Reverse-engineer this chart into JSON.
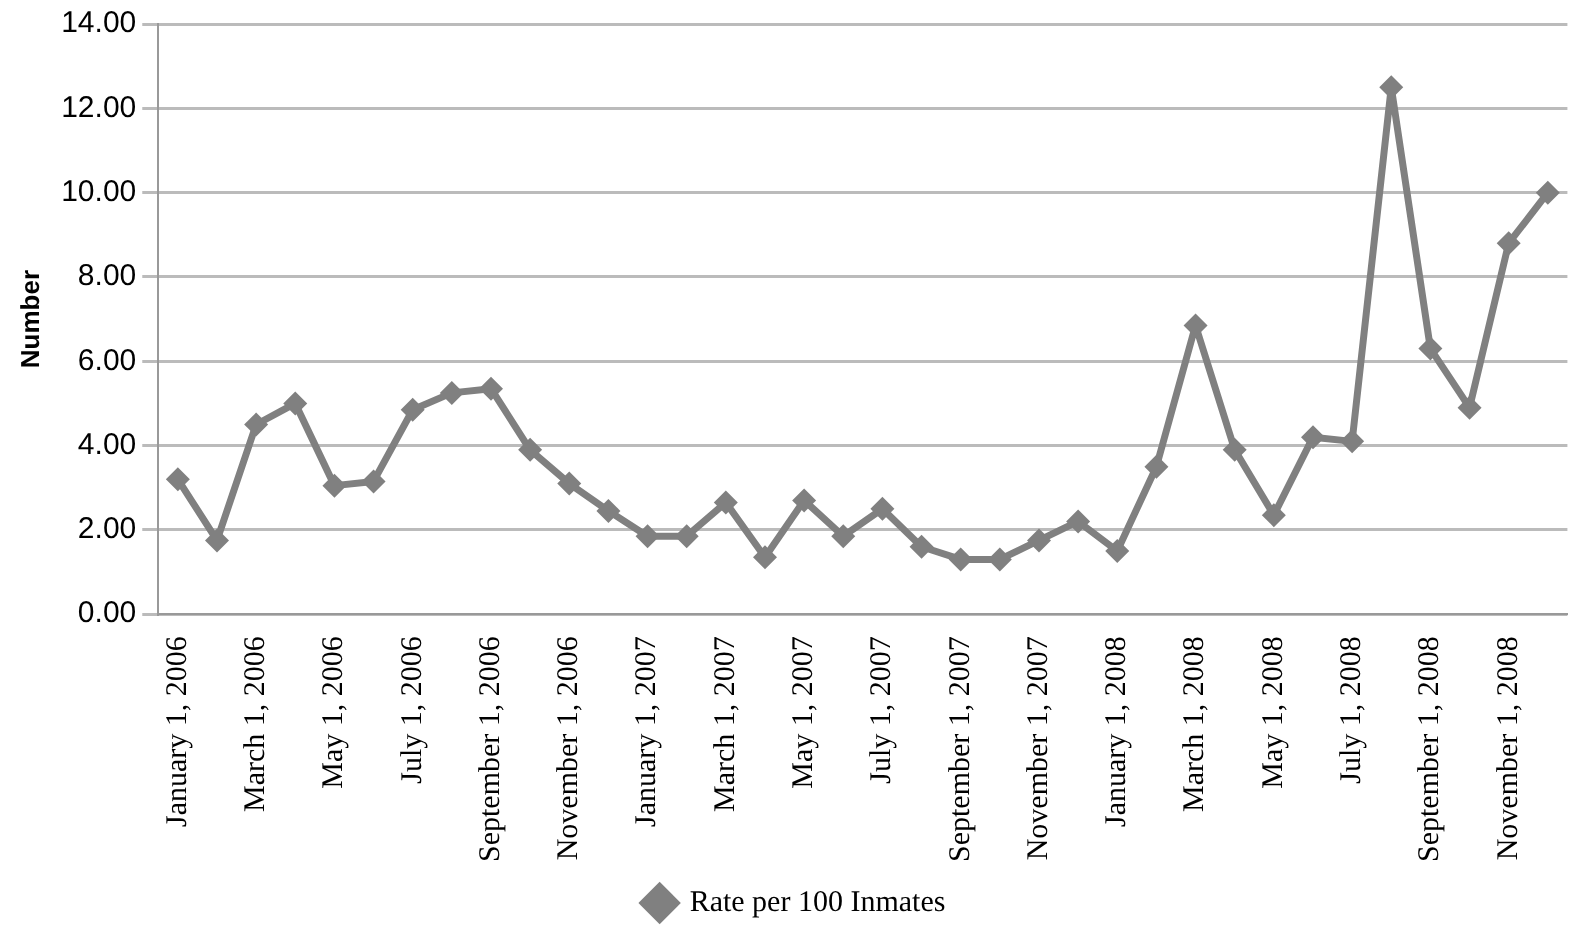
{
  "chart_data": {
    "type": "line",
    "ylabel": "Number",
    "categories": [
      "January 1, 2006",
      null,
      "March 1, 2006",
      null,
      "May 1, 2006",
      null,
      "July 1, 2006",
      null,
      "September 1, 2006",
      null,
      "November 1, 2006",
      null,
      "January 1, 2007",
      null,
      "March 1, 2007",
      null,
      "May 1, 2007",
      null,
      "July 1, 2007",
      null,
      "September 1, 2007",
      null,
      "November 1, 2007",
      null,
      "January 1, 2008",
      null,
      "March 1, 2008",
      null,
      "May 1, 2008",
      null,
      "July 1, 2008",
      null,
      "September 1, 2008",
      null,
      "November 1, 2008",
      null
    ],
    "series": [
      {
        "name": "Rate per 100 Inmates",
        "color": "#808080",
        "values": [
          3.2,
          1.75,
          4.5,
          5.0,
          3.05,
          3.15,
          4.85,
          5.25,
          5.35,
          3.9,
          3.1,
          2.45,
          1.85,
          1.85,
          2.65,
          1.35,
          2.7,
          1.85,
          2.5,
          1.6,
          1.3,
          1.3,
          1.75,
          2.2,
          1.5,
          3.5,
          6.85,
          3.9,
          2.35,
          4.2,
          4.1,
          12.5,
          6.3,
          4.9,
          8.8,
          10.0
        ]
      }
    ],
    "ylim": [
      0,
      14
    ],
    "yticks": [
      {
        "value": 0,
        "label": "0.00"
      },
      {
        "value": 2,
        "label": "2.00"
      },
      {
        "value": 4,
        "label": "4.00"
      },
      {
        "value": 6,
        "label": "6.00"
      },
      {
        "value": 8,
        "label": "8.00"
      },
      {
        "value": 10,
        "label": "10.00"
      },
      {
        "value": 12,
        "label": "12.00"
      },
      {
        "value": 14,
        "label": "14.00"
      }
    ],
    "grid": "y",
    "legend": "bottom",
    "marker": "diamond",
    "line_style": "solid"
  }
}
